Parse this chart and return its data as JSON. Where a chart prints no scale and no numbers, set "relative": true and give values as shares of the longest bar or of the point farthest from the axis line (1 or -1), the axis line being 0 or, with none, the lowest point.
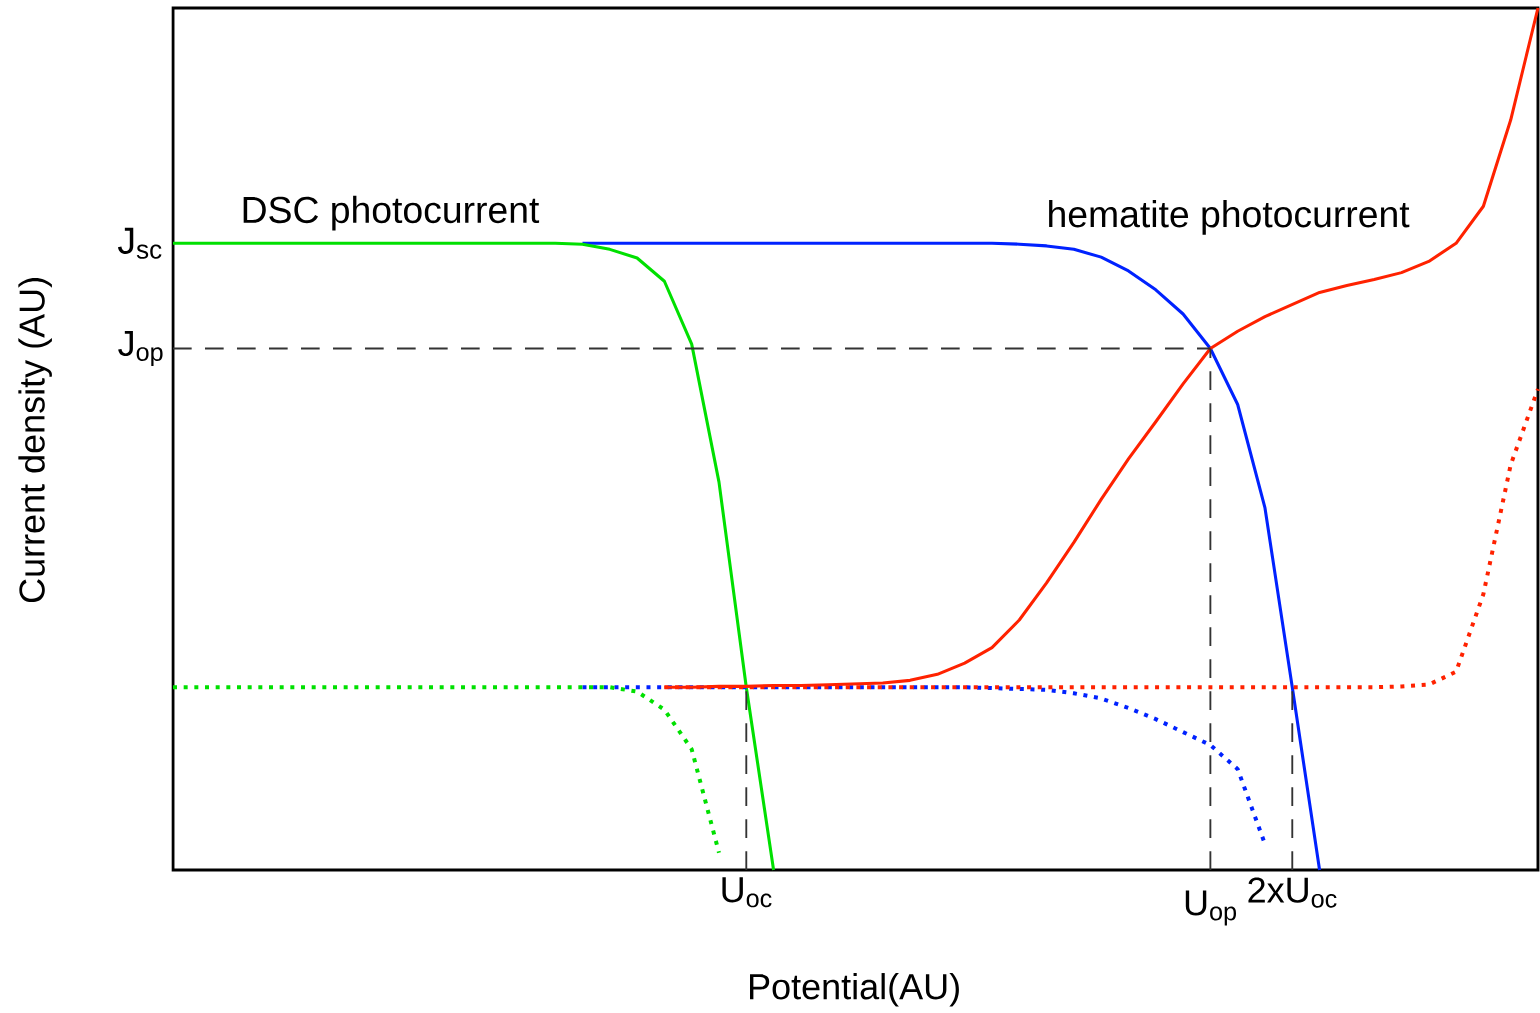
{
  "chart_data": {
    "type": "line",
    "relative": true,
    "xlabel": "Potential(AU)",
    "ylabel": "Current density (AU)",
    "categories": [
      null,
      null,
      null,
      null,
      null,
      null,
      null,
      null,
      null,
      null,
      null,
      null,
      null,
      null,
      null,
      null,
      null,
      null,
      null,
      null,
      null,
      "U$_{oc}$",
      null,
      null,
      null,
      null,
      null,
      null,
      null,
      null,
      null,
      null,
      null,
      null,
      null,
      null,
      null,
      null,
      "U$_{op}$",
      null,
      null,
      "2xU$_{oc}$",
      null,
      null,
      null,
      null,
      null,
      null,
      null,
      null,
      null
    ],
    "annotations": [
      "DSC photocurrent",
      "hematite photocurrent",
      "J$_{sc}$"
    ],
    "ref_lines": [
      {
        "axis": "y",
        "value": 0.605,
        "label": "J$_{op}$",
        "color": "#333333",
        "line_style": "dashed"
      },
      {
        "axis": "x",
        "value": "U$_{oc}$",
        "color": "#333333",
        "line_style": "dashed"
      },
      {
        "axis": "x",
        "value": "U$_{op}$",
        "color": "#333333",
        "line_style": "dashed"
      },
      {
        "axis": "x",
        "value": "2xU$_{oc}$",
        "color": "#333333",
        "line_style": "dashed"
      }
    ],
    "series": [
      {
        "color": "#0022ff",
        "line_style": "solid",
        "values": [
          null,
          null,
          null,
          null,
          null,
          null,
          null,
          null,
          null,
          null,
          null,
          null,
          null,
          null,
          null,
          0.727,
          0.727,
          0.727,
          0.727,
          0.727,
          0.727,
          0.727,
          0.727,
          0.727,
          0.727,
          0.727,
          0.727,
          0.727,
          0.727,
          0.727,
          0.727,
          0.726,
          0.724,
          0.72,
          0.711,
          0.695,
          0.673,
          0.645,
          0.605,
          0.54,
          0.42,
          0.212,
          0.0,
          null,
          null,
          null,
          null,
          null,
          null,
          null,
          null
        ]
      },
      {
        "color": "#00e000",
        "line_style": "solid",
        "values": [
          0.727,
          0.727,
          0.727,
          0.727,
          0.727,
          0.727,
          0.727,
          0.727,
          0.727,
          0.727,
          0.727,
          0.727,
          0.727,
          0.727,
          0.727,
          0.726,
          0.72,
          0.71,
          0.683,
          0.61,
          0.45,
          0.212,
          0.0,
          null,
          null,
          null,
          null,
          null,
          null,
          null,
          null,
          null,
          null,
          null,
          null,
          null,
          null,
          null,
          null,
          null,
          null,
          null,
          null,
          null,
          null,
          null,
          null,
          null,
          null,
          null,
          null
        ]
      },
      {
        "color": "#0022ff",
        "line_style": "dotted",
        "values": [
          null,
          null,
          null,
          null,
          null,
          null,
          null,
          null,
          null,
          null,
          null,
          null,
          null,
          null,
          null,
          0.212,
          0.212,
          0.212,
          0.212,
          0.212,
          0.212,
          0.212,
          0.212,
          0.212,
          0.212,
          0.212,
          0.212,
          0.212,
          0.212,
          0.212,
          0.211,
          0.21,
          0.209,
          0.205,
          0.199,
          0.188,
          0.175,
          0.16,
          0.145,
          0.117,
          0.03,
          null,
          null,
          null,
          null,
          null,
          null,
          null,
          null,
          null,
          null
        ]
      },
      {
        "color": "#00e000",
        "line_style": "dotted",
        "values": [
          0.212,
          0.212,
          0.212,
          0.212,
          0.212,
          0.212,
          0.212,
          0.212,
          0.212,
          0.212,
          0.212,
          0.212,
          0.212,
          0.212,
          0.212,
          0.212,
          0.212,
          0.207,
          0.186,
          0.14,
          0.02,
          null,
          null,
          null,
          null,
          null,
          null,
          null,
          null,
          null,
          null,
          null,
          null,
          null,
          null,
          null,
          null,
          null,
          null,
          null,
          null,
          null,
          null,
          null,
          null,
          null,
          null,
          null,
          null,
          null,
          null
        ]
      },
      {
        "color": "#ff2200",
        "line_style": "dotted",
        "values": [
          null,
          null,
          null,
          null,
          null,
          null,
          null,
          null,
          null,
          null,
          null,
          null,
          null,
          null,
          null,
          null,
          null,
          null,
          0.212,
          0.212,
          0.212,
          0.212,
          0.212,
          0.212,
          0.212,
          0.212,
          0.212,
          0.212,
          0.212,
          0.212,
          0.212,
          0.212,
          0.212,
          0.212,
          0.212,
          0.212,
          0.212,
          0.212,
          0.212,
          0.212,
          0.212,
          0.212,
          0.212,
          0.212,
          0.212,
          0.213,
          0.215,
          0.23,
          0.32,
          0.47,
          0.558
        ]
      },
      {
        "color": "#ff2200",
        "line_style": "solid",
        "values": [
          null,
          null,
          null,
          null,
          null,
          null,
          null,
          null,
          null,
          null,
          null,
          null,
          null,
          null,
          null,
          null,
          null,
          null,
          0.212,
          0.212,
          0.213,
          0.213,
          0.214,
          0.214,
          0.215,
          0.216,
          0.217,
          0.22,
          0.227,
          0.24,
          0.258,
          0.29,
          0.333,
          0.38,
          0.43,
          0.477,
          0.52,
          0.564,
          0.605,
          0.625,
          0.642,
          0.656,
          0.67,
          0.678,
          0.685,
          0.693,
          0.706,
          0.727,
          0.77,
          0.87,
          1.0
        ]
      }
    ]
  }
}
